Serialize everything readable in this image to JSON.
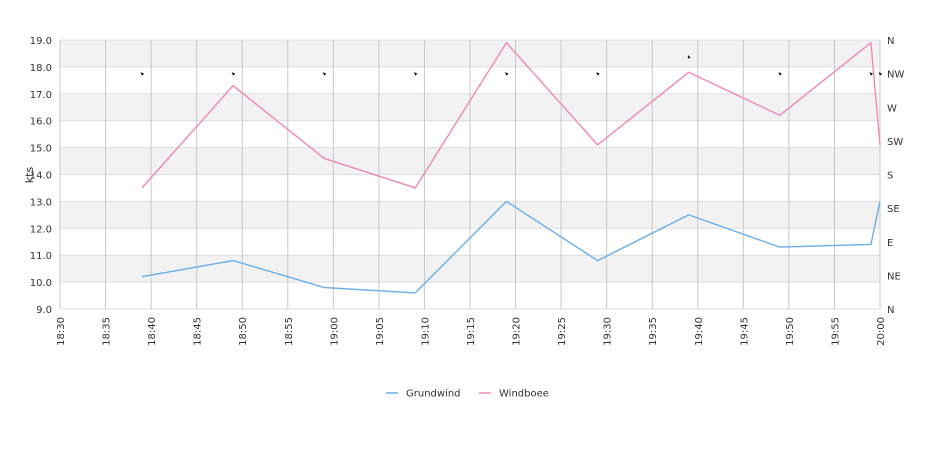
{
  "chart_data": {
    "type": "line",
    "ylabel": "kts",
    "ylim": [
      9,
      19
    ],
    "y_ticks": [
      "9.0",
      "10.0",
      "11.0",
      "12.0",
      "13.0",
      "14.0",
      "15.0",
      "16.0",
      "17.0",
      "18.0",
      "19.0"
    ],
    "x_ticks": [
      "18:30",
      "18:35",
      "18:40",
      "18:45",
      "18:50",
      "18:55",
      "19:00",
      "19:05",
      "19:10",
      "19:15",
      "19:20",
      "19:25",
      "19:30",
      "19:35",
      "19:40",
      "19:45",
      "19:50",
      "19:55",
      "20:00"
    ],
    "xlim": [
      "18:30",
      "20:00"
    ],
    "direction_ticks": [
      "N",
      "NE",
      "E",
      "SE",
      "S",
      "SW",
      "W",
      "NW",
      "N"
    ],
    "grid": true,
    "legend_position": "bottom",
    "series": [
      {
        "name": "Grundwind",
        "color": "#6aaee8",
        "x": [
          "18:39",
          "18:49",
          "18:59",
          "19:09",
          "19:19",
          "19:29",
          "19:39",
          "19:49",
          "19:59",
          "20:00"
        ],
        "values": [
          10.2,
          10.8,
          9.8,
          9.6,
          13.0,
          10.8,
          12.5,
          11.3,
          11.4,
          13.0
        ]
      },
      {
        "name": "Windboee",
        "color": "#ee88b8",
        "x": [
          "18:39",
          "18:49",
          "18:59",
          "19:09",
          "19:19",
          "19:29",
          "19:39",
          "19:49",
          "19:59",
          "20:00"
        ],
        "values": [
          13.5,
          17.3,
          14.6,
          13.5,
          18.9,
          15.1,
          17.8,
          16.2,
          18.9,
          15.1
        ]
      }
    ],
    "direction_markers": {
      "x": [
        "18:39",
        "18:49",
        "18:59",
        "19:09",
        "19:19",
        "19:29",
        "19:39",
        "19:49",
        "19:59",
        "20:00"
      ],
      "direction": [
        "NW",
        "NW",
        "NW",
        "NW",
        "NW",
        "NW",
        "NNW",
        "NW",
        "NW",
        "NW"
      ]
    }
  }
}
